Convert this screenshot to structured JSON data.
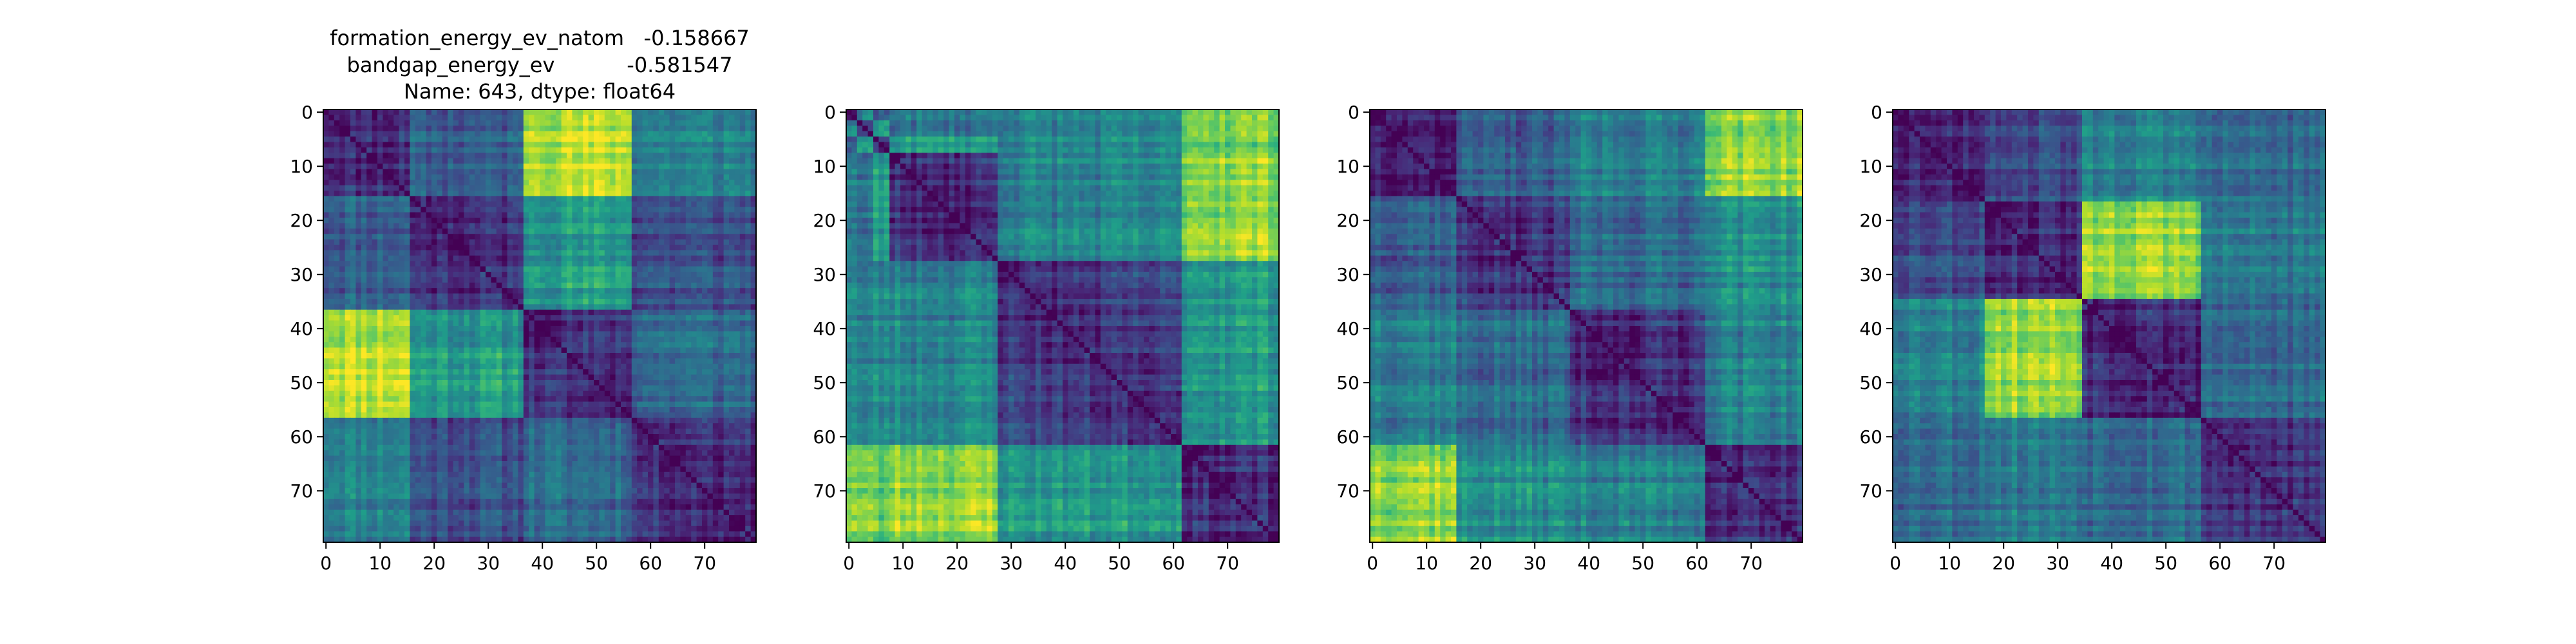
{
  "figure": {
    "title_lines": [
      "formation_energy_ev_natom   -0.158667",
      "bandgap_energy_ev           -0.581547",
      "Name: 643, dtype: float64"
    ]
  },
  "chart_data": [
    {
      "type": "heatmap",
      "size": 80,
      "colormap": "viridis",
      "blocks": [
        0,
        16,
        37,
        57,
        80
      ],
      "block_intensity": [
        [
          0.1,
          0.3,
          0.92,
          0.45
        ],
        [
          0.3,
          0.1,
          0.55,
          0.25
        ],
        [
          0.92,
          0.55,
          0.1,
          0.35
        ],
        [
          0.45,
          0.25,
          0.35,
          0.1
        ]
      ],
      "xticks": [
        0,
        10,
        20,
        30,
        40,
        50,
        60,
        70
      ],
      "yticks": [
        0,
        10,
        20,
        30,
        40,
        50,
        60,
        70
      ],
      "xlim": [
        -0.5,
        79.5
      ],
      "ylim": [
        79.5,
        -0.5
      ],
      "seed": 11
    },
    {
      "type": "heatmap",
      "size": 80,
      "colormap": "viridis",
      "blocks": [
        0,
        2,
        5,
        8,
        28,
        62,
        80
      ],
      "block_intensity": [
        [
          0.1,
          0.45,
          0.3,
          0.45,
          0.5,
          0.85
        ],
        [
          0.45,
          0.1,
          0.55,
          0.35,
          0.4,
          0.8
        ],
        [
          0.3,
          0.55,
          0.1,
          0.55,
          0.45,
          0.75
        ],
        [
          0.45,
          0.35,
          0.55,
          0.1,
          0.45,
          0.85
        ],
        [
          0.5,
          0.4,
          0.45,
          0.45,
          0.1,
          0.55
        ],
        [
          0.85,
          0.8,
          0.75,
          0.85,
          0.55,
          0.1
        ]
      ],
      "xticks": [
        0,
        10,
        20,
        30,
        40,
        50,
        60,
        70
      ],
      "yticks": [
        0,
        10,
        20,
        30,
        40,
        50,
        60,
        70
      ],
      "xlim": [
        -0.5,
        79.5
      ],
      "ylim": [
        79.5,
        -0.5
      ],
      "seed": 23
    },
    {
      "type": "heatmap",
      "size": 80,
      "colormap": "viridis",
      "blocks": [
        0,
        16,
        37,
        62,
        80
      ],
      "block_intensity": [
        [
          0.1,
          0.3,
          0.45,
          0.85
        ],
        [
          0.3,
          0.1,
          0.35,
          0.5
        ],
        [
          0.45,
          0.35,
          0.1,
          0.45
        ],
        [
          0.85,
          0.5,
          0.45,
          0.1
        ]
      ],
      "xticks": [
        0,
        10,
        20,
        30,
        40,
        50,
        60,
        70
      ],
      "yticks": [
        0,
        10,
        20,
        30,
        40,
        50,
        60,
        70
      ],
      "xlim": [
        -0.5,
        79.5
      ],
      "ylim": [
        79.5,
        -0.5
      ],
      "seed": 37
    },
    {
      "type": "heatmap",
      "size": 80,
      "colormap": "viridis",
      "blocks": [
        0,
        17,
        35,
        57,
        80
      ],
      "block_intensity": [
        [
          0.1,
          0.25,
          0.45,
          0.35
        ],
        [
          0.25,
          0.1,
          0.85,
          0.4
        ],
        [
          0.45,
          0.85,
          0.1,
          0.35
        ],
        [
          0.35,
          0.4,
          0.35,
          0.1
        ]
      ],
      "xticks": [
        0,
        10,
        20,
        30,
        40,
        50,
        60,
        70
      ],
      "yticks": [
        0,
        10,
        20,
        30,
        40,
        50,
        60,
        70
      ],
      "xlim": [
        -0.5,
        79.5
      ],
      "ylim": [
        79.5,
        -0.5
      ],
      "seed": 53
    }
  ]
}
